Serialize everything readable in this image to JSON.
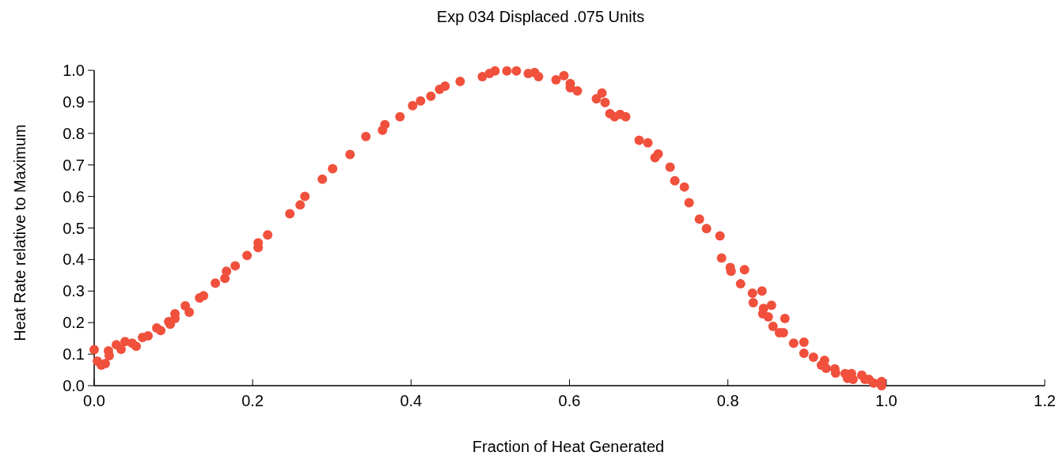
{
  "chart_data": {
    "type": "scatter",
    "title": "Exp 034 Displaced .075 Units",
    "xlabel": "Fraction of Heat Generated",
    "ylabel": "Heat Rate relative to Maximum",
    "xlim": [
      0,
      1.2
    ],
    "ylim": [
      0,
      1
    ],
    "xticks": [
      {
        "value": 0,
        "label": "0.0"
      },
      {
        "value": 0.2,
        "label": "0.2"
      },
      {
        "value": 0.4,
        "label": "0.4"
      },
      {
        "value": 0.6,
        "label": "0.6"
      },
      {
        "value": 0.8,
        "label": "0.8"
      },
      {
        "value": 1,
        "label": "1.0"
      },
      {
        "value": 1.2,
        "label": "1.2"
      }
    ],
    "yticks": [
      {
        "value": 0,
        "label": "0.0"
      },
      {
        "value": 0.1,
        "label": "0.1"
      },
      {
        "value": 0.2,
        "label": "0.2"
      },
      {
        "value": 0.3,
        "label": "0.3"
      },
      {
        "value": 0.4,
        "label": "0.4"
      },
      {
        "value": 0.5,
        "label": "0.5"
      },
      {
        "value": 0.6,
        "label": "0.6"
      },
      {
        "value": 0.7,
        "label": "0.7"
      },
      {
        "value": 0.8,
        "label": "0.8"
      },
      {
        "value": 0.9,
        "label": "0.9"
      },
      {
        "value": 1,
        "label": "1.0"
      }
    ],
    "grid": false,
    "marker": "circle",
    "series": [
      {
        "color": "#f0503c",
        "x": [
          0.0,
          0.004,
          0.009,
          0.014,
          0.018,
          0.019,
          0.028,
          0.034,
          0.039,
          0.048,
          0.053,
          0.061,
          0.068,
          0.079,
          0.084,
          0.094,
          0.096,
          0.102,
          0.102,
          0.115,
          0.12,
          0.133,
          0.138,
          0.153,
          0.165,
          0.167,
          0.178,
          0.193,
          0.207,
          0.207,
          0.219,
          0.247,
          0.26,
          0.266,
          0.288,
          0.301,
          0.323,
          0.343,
          0.364,
          0.367,
          0.386,
          0.402,
          0.412,
          0.425,
          0.436,
          0.443,
          0.462,
          0.49,
          0.499,
          0.506,
          0.521,
          0.533,
          0.548,
          0.556,
          0.561,
          0.583,
          0.593,
          0.601,
          0.601,
          0.61,
          0.634,
          0.641,
          0.645,
          0.651,
          0.657,
          0.664,
          0.671,
          0.688,
          0.699,
          0.708,
          0.712,
          0.727,
          0.733,
          0.745,
          0.751,
          0.764,
          0.773,
          0.79,
          0.792,
          0.803,
          0.804,
          0.821,
          0.816,
          0.831,
          0.843,
          0.832,
          0.845,
          0.855,
          0.844,
          0.851,
          0.872,
          0.857,
          0.865,
          0.87,
          0.883,
          0.896,
          0.896,
          0.908,
          0.922,
          0.918,
          0.924,
          0.935,
          0.936,
          0.948,
          0.956,
          0.951,
          0.958,
          0.969,
          0.973,
          0.978,
          0.984,
          0.994,
          0.994
        ],
        "values": [
          0.114,
          0.078,
          0.065,
          0.07,
          0.11,
          0.095,
          0.13,
          0.115,
          0.14,
          0.135,
          0.125,
          0.153,
          0.158,
          0.183,
          0.175,
          0.203,
          0.195,
          0.228,
          0.213,
          0.253,
          0.233,
          0.278,
          0.285,
          0.325,
          0.34,
          0.363,
          0.38,
          0.413,
          0.453,
          0.438,
          0.478,
          0.545,
          0.573,
          0.6,
          0.655,
          0.688,
          0.733,
          0.79,
          0.81,
          0.828,
          0.853,
          0.888,
          0.903,
          0.918,
          0.94,
          0.95,
          0.965,
          0.98,
          0.99,
          0.998,
          0.998,
          0.998,
          0.99,
          0.993,
          0.98,
          0.97,
          0.983,
          0.958,
          0.945,
          0.935,
          0.91,
          0.928,
          0.898,
          0.863,
          0.853,
          0.86,
          0.853,
          0.778,
          0.77,
          0.723,
          0.735,
          0.693,
          0.65,
          0.63,
          0.58,
          0.528,
          0.498,
          0.475,
          0.405,
          0.375,
          0.363,
          0.368,
          0.323,
          0.293,
          0.3,
          0.263,
          0.245,
          0.255,
          0.228,
          0.218,
          0.213,
          0.188,
          0.168,
          0.168,
          0.135,
          0.138,
          0.103,
          0.09,
          0.08,
          0.065,
          0.055,
          0.053,
          0.04,
          0.038,
          0.038,
          0.023,
          0.02,
          0.033,
          0.02,
          0.02,
          0.008,
          0.013,
          0.0
        ]
      }
    ]
  }
}
